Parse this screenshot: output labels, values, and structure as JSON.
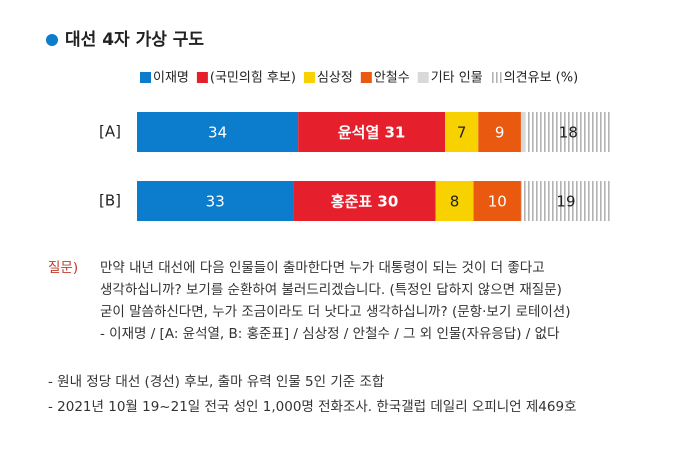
{
  "chart_data": {
    "type": "stacked-bar",
    "title": "대선 4자 가상 구도",
    "categories": [
      "[A]",
      "[B]"
    ],
    "series": [
      {
        "name": "이재명",
        "color": "#0b7dcc",
        "values": [
          34,
          33
        ]
      },
      {
        "name": "(국민의힘 후보)",
        "color": "#e51f2b",
        "values": [
          31,
          30
        ],
        "value_labels": [
          "윤석열 31",
          "홍준표 30"
        ]
      },
      {
        "name": "심상정",
        "color": "#f7d100",
        "values": [
          7,
          8
        ]
      },
      {
        "name": "안철수",
        "color": "#e9590f",
        "values": [
          9,
          10
        ]
      },
      {
        "name": "기타 인물",
        "color": "#d9d9d9",
        "values": [
          1,
          0
        ],
        "hide_labels": true
      },
      {
        "name": "의견유보 (%)",
        "color": "#b3b3b3",
        "hatch": true,
        "values": [
          18,
          19
        ]
      }
    ]
  },
  "question": {
    "label": "질문)",
    "lines": [
      "만약 내년 대선에 다음 인물들이 출마한다면 누가 대통령이 되는 것이 더 좋다고",
      "생각하십니까? 보기를 순환하여 불러드리겠습니다. (특정인 답하지 않으면 재질문)",
      "굳이 말씀하신다면, 누가 조금이라도 더 낫다고 생각하십니까? (문항·보기 로테이션)",
      "- 이재명 / [A: 윤석열, B: 홍준표] / 심상정 /  안철수 / 그 외 인물(자유응답) / 없다"
    ]
  },
  "notes": [
    "- 원내 정당 대선 (경선) 후보, 출마 유력 인물 5인 기준 조합",
    "- 2021년 10월 19~21일 전국 성인 1,000명 전화조사. 한국갤럽 데일리 오피니언 제469호"
  ]
}
